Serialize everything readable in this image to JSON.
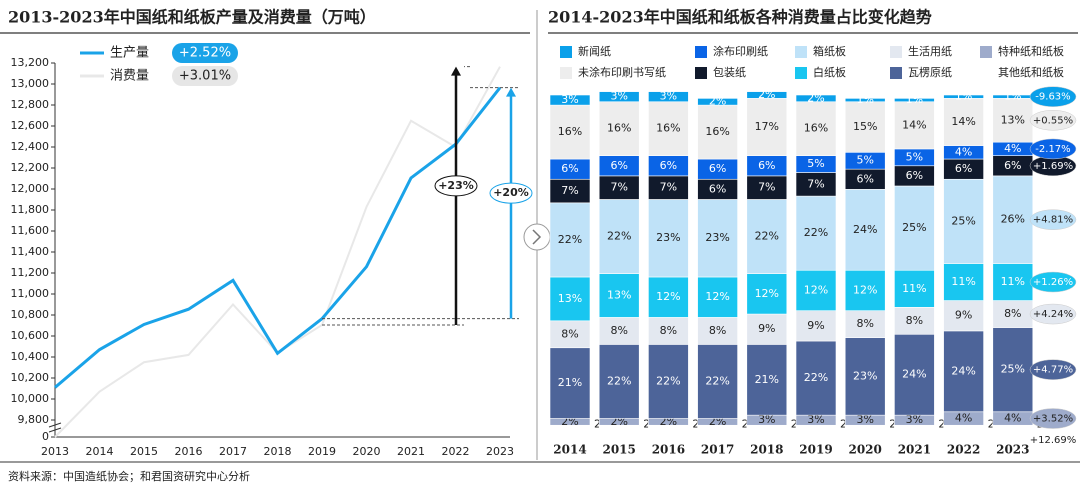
{
  "chart_data": [
    {
      "type": "line",
      "title": "2013-2023年中国纸和纸板产量及消费量（万吨）",
      "categories": [
        "2013",
        "2014",
        "2015",
        "2016",
        "2017",
        "2018",
        "2019",
        "2020",
        "2021",
        "2022",
        "2023"
      ],
      "series": [
        {
          "name": "生产量",
          "color": "#1aa3e8",
          "badge": "+2.52%",
          "values": [
            10110,
            10470,
            10710,
            10855,
            11130,
            10435,
            10765,
            11260,
            12105,
            12425,
            12965
          ]
        },
        {
          "name": "消费量",
          "color": "#e8e8e8",
          "badge": "+3.01%",
          "values": [
            9780,
            10070,
            10350,
            10420,
            10900,
            10440,
            10705,
            11830,
            12650,
            12400,
            13165
          ]
        }
      ],
      "ylim": [
        9800,
        13200
      ],
      "yticks": [
        0,
        {
          "value": 9800,
          "label": "9,800"
        },
        {
          "value": 10000,
          "label": "10,000"
        },
        {
          "value": 10200,
          "label": "10,200"
        },
        {
          "value": 10400,
          "label": "10,400"
        },
        {
          "value": 10600,
          "label": "10,600"
        },
        {
          "value": 10800,
          "label": "10,800"
        },
        {
          "value": 11000,
          "label": "11,000"
        },
        {
          "value": 11200,
          "label": "11,200"
        },
        {
          "value": 11400,
          "label": "11,400"
        },
        {
          "value": 11600,
          "label": "11,600"
        },
        {
          "value": 11800,
          "label": "11,800"
        },
        {
          "value": 12000,
          "label": "12,000"
        },
        {
          "value": 12200,
          "label": "12,200"
        },
        {
          "value": 12400,
          "label": "12,400"
        },
        {
          "value": 12600,
          "label": "12,600"
        },
        {
          "value": 12800,
          "label": "12,800"
        },
        {
          "value": 13000,
          "label": "13,000"
        },
        {
          "value": 13200,
          "label": "13,200"
        }
      ],
      "annotations": [
        "+23%",
        "+20%"
      ]
    },
    {
      "type": "stacked_bar",
      "title": "2014-2023年中国纸和纸板各种消费量占比变化趋势",
      "categories": [
        "2014",
        "2015",
        "2016",
        "2017",
        "2018",
        "2019",
        "2020",
        "2021",
        "2022",
        "2023"
      ],
      "ylim": [
        0,
        100
      ],
      "series": [
        {
          "name": "其他纸和纸板",
          "color": "#ffffff",
          "badge": "+12.69%",
          "values": [
            2,
            2,
            2,
            2,
            2,
            2,
            2,
            2,
            2,
            2
          ],
          "value_labels": [
            "2%",
            "2%",
            "2%",
            "2%",
            "2%",
            "2%",
            "2%",
            "2%",
            "2%",
            "2%"
          ]
        },
        {
          "name": "特种纸和纸板",
          "color": "#9eabcb",
          "badge": "+3.52%",
          "values": [
            2,
            2,
            2,
            2,
            3,
            3,
            3,
            3,
            4,
            4
          ],
          "value_labels": [
            "2%",
            "2%",
            "2%",
            "2%",
            "3%",
            "3%",
            "3%",
            "3%",
            "4%",
            "4%"
          ]
        },
        {
          "name": "瓦楞原纸",
          "color": "#4d6499",
          "badge": "+4.77%",
          "values": [
            21,
            22,
            22,
            22,
            21,
            22,
            23,
            24,
            24,
            25
          ],
          "value_labels": [
            "21%",
            "22%",
            "22%",
            "22%",
            "21%",
            "22%",
            "23%",
            "24%",
            "24%",
            "25%"
          ]
        },
        {
          "name": "生活用纸",
          "color": "#e3e8f0",
          "badge": "+4.24%",
          "values": [
            8,
            8,
            8,
            8,
            9,
            9,
            8,
            8,
            9,
            8
          ],
          "value_labels": [
            "8%",
            "8%",
            "8%",
            "8%",
            "9%",
            "9%",
            "8%",
            "8%",
            "9%",
            "8%"
          ]
        },
        {
          "name": "白纸板",
          "color": "#19c6f0",
          "badge": "+1.26%",
          "values": [
            13,
            13,
            12,
            12,
            12,
            12,
            12,
            11,
            11,
            11
          ],
          "value_labels": [
            "13%",
            "13%",
            "12%",
            "12%",
            "12%",
            "12%",
            "12%",
            "11%",
            "11%",
            "11%"
          ]
        },
        {
          "name": "箱纸板",
          "color": "#bfe2f8",
          "badge": "+4.81%",
          "values": [
            22,
            22,
            23,
            23,
            22,
            22,
            24,
            25,
            25,
            26
          ],
          "value_labels": [
            "22%",
            "22%",
            "23%",
            "23%",
            "22%",
            "22%",
            "24%",
            "25%",
            "25%",
            "26%"
          ]
        },
        {
          "name": "包装纸",
          "color": "#111a2c",
          "badge": "+1.69%",
          "values": [
            7,
            7,
            7,
            6,
            7,
            7,
            6,
            6,
            6,
            6
          ],
          "value_labels": [
            "7%",
            "7%",
            "7%",
            "6%",
            "7%",
            "7%",
            "6%",
            "6%",
            "6%",
            "6%"
          ]
        },
        {
          "name": "涂布印刷纸",
          "color": "#0a64e6",
          "badge": "-2.17%",
          "values": [
            6,
            6,
            6,
            6,
            6,
            5,
            5,
            5,
            4,
            4
          ],
          "value_labels": [
            "6%",
            "6%",
            "6%",
            "6%",
            "6%",
            "5%",
            "5%",
            "5%",
            "4%",
            "4%"
          ]
        },
        {
          "name": "未涂布印刷书写纸",
          "color": "#ededed",
          "badge": "+0.55%",
          "values": [
            16,
            16,
            16,
            16,
            17,
            16,
            15,
            14,
            14,
            13
          ],
          "value_labels": [
            "16%",
            "16%",
            "16%",
            "16%",
            "17%",
            "16%",
            "15%",
            "14%",
            "14%",
            "13%"
          ]
        },
        {
          "name": "新闻纸",
          "color": "#0aa0ea",
          "badge": "-9.63%",
          "values": [
            3,
            3,
            3,
            2,
            2,
            2,
            1,
            1,
            1,
            1
          ],
          "value_labels": [
            "3%",
            "3%",
            "3%",
            "2%",
            "2%",
            "2%",
            "1%",
            "1%",
            "1%",
            "1%"
          ]
        }
      ]
    }
  ],
  "source": "资料来源：中国造纸协会；和君国资研究中心分析"
}
